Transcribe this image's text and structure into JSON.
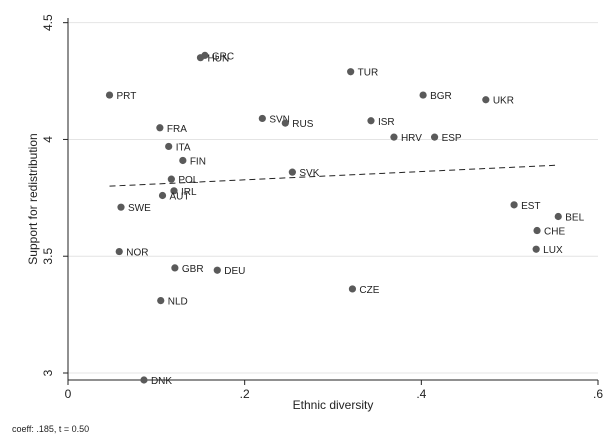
{
  "chart_data": {
    "type": "scatter",
    "xlabel": "Ethnic diversity",
    "ylabel": "Support for redistribution",
    "xlim": [
      0,
      0.6
    ],
    "ylim": [
      2.97,
      4.52
    ],
    "xticks": [
      0,
      0.2,
      0.4,
      0.6
    ],
    "xtick_labels": [
      "0",
      ".2",
      ".4",
      ".6"
    ],
    "yticks": [
      3,
      3.5,
      4,
      4.5
    ],
    "ytick_labels": [
      "3",
      "3.5",
      "4",
      "4.5"
    ],
    "grid": "horizontal",
    "note": "coeff: .185, t = 0.50",
    "points": [
      {
        "label": "PRT",
        "x": 0.047,
        "y": 4.19
      },
      {
        "label": "GRC",
        "x": 0.155,
        "y": 4.36
      },
      {
        "label": "HUN",
        "x": 0.15,
        "y": 4.35
      },
      {
        "label": "TUR",
        "x": 0.32,
        "y": 4.29
      },
      {
        "label": "BGR",
        "x": 0.402,
        "y": 4.19
      },
      {
        "label": "UKR",
        "x": 0.473,
        "y": 4.17
      },
      {
        "label": "SVN",
        "x": 0.22,
        "y": 4.09
      },
      {
        "label": "RUS",
        "x": 0.246,
        "y": 4.07
      },
      {
        "label": "ISR",
        "x": 0.343,
        "y": 4.08
      },
      {
        "label": "FRA",
        "x": 0.104,
        "y": 4.05
      },
      {
        "label": "HRV",
        "x": 0.369,
        "y": 4.01
      },
      {
        "label": "ESP",
        "x": 0.415,
        "y": 4.01
      },
      {
        "label": "ITA",
        "x": 0.114,
        "y": 3.97
      },
      {
        "label": "FIN",
        "x": 0.13,
        "y": 3.91
      },
      {
        "label": "SVK",
        "x": 0.254,
        "y": 3.86
      },
      {
        "label": "POL",
        "x": 0.117,
        "y": 3.83
      },
      {
        "label": "IRL",
        "x": 0.12,
        "y": 3.78
      },
      {
        "label": "AUT",
        "x": 0.107,
        "y": 3.76
      },
      {
        "label": "SWE",
        "x": 0.06,
        "y": 3.71
      },
      {
        "label": "EST",
        "x": 0.505,
        "y": 3.72
      },
      {
        "label": "BEL",
        "x": 0.555,
        "y": 3.67
      },
      {
        "label": "CHE",
        "x": 0.531,
        "y": 3.61
      },
      {
        "label": "LUX",
        "x": 0.53,
        "y": 3.53
      },
      {
        "label": "NOR",
        "x": 0.058,
        "y": 3.52
      },
      {
        "label": "GBR",
        "x": 0.121,
        "y": 3.45
      },
      {
        "label": "DEU",
        "x": 0.169,
        "y": 3.44
      },
      {
        "label": "CZE",
        "x": 0.322,
        "y": 3.36
      },
      {
        "label": "NLD",
        "x": 0.105,
        "y": 3.31
      },
      {
        "label": "DNK",
        "x": 0.086,
        "y": 2.97
      }
    ],
    "fit_line": {
      "style": "dashed",
      "points": [
        {
          "x": 0.047,
          "y": 3.8
        },
        {
          "x": 0.555,
          "y": 3.89
        }
      ]
    },
    "colors": {
      "point": "#5a5a5a",
      "fit_line": "#222222",
      "grid": "#e4e4e4",
      "axis": "#222222"
    }
  }
}
